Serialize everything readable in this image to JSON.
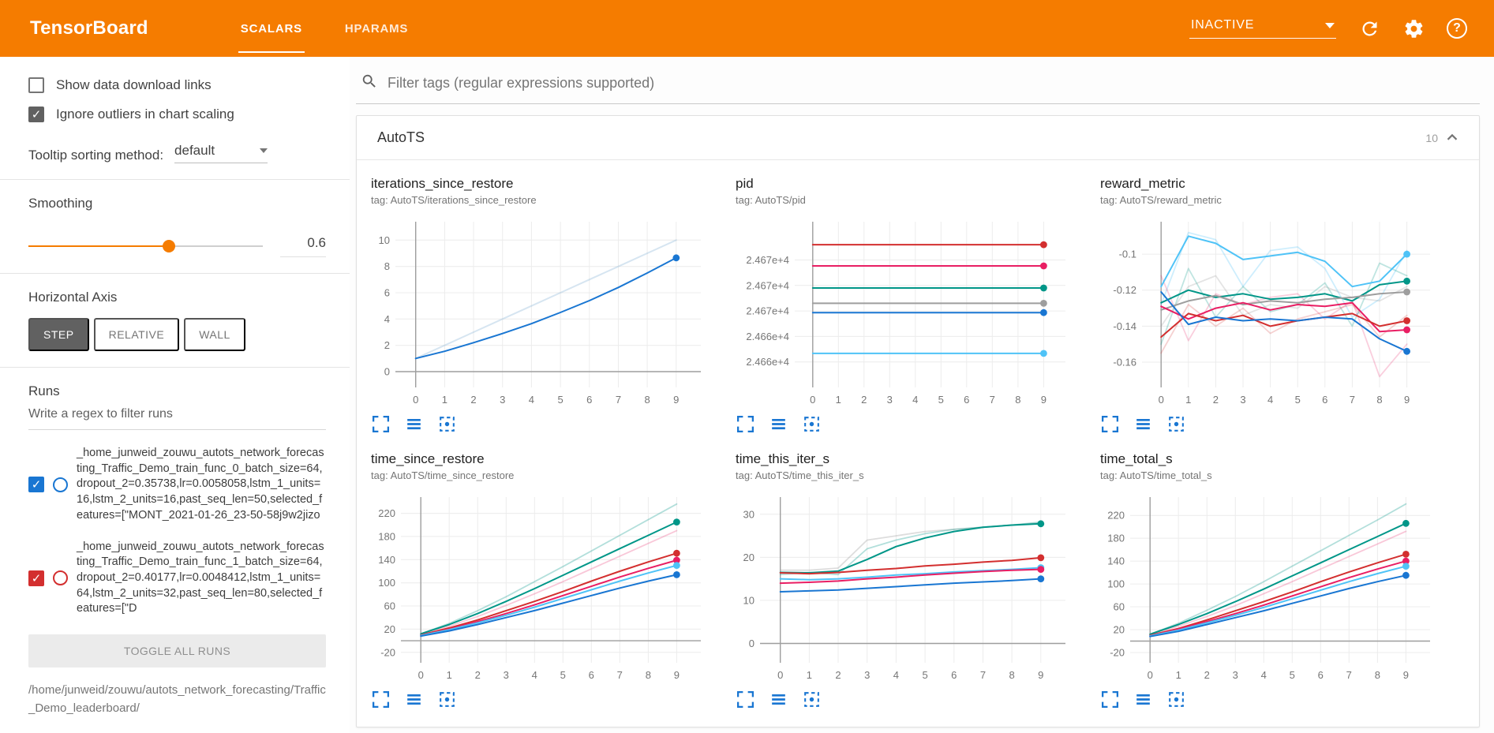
{
  "header": {
    "title": "TensorBoard",
    "tabs": [
      {
        "label": "SCALARS",
        "active": true
      },
      {
        "label": "HPARAMS",
        "active": false
      }
    ],
    "status_dropdown": "INACTIVE"
  },
  "icons": {
    "search": "magnifier",
    "refresh": "circular-arrow",
    "settings": "gear",
    "help": "question-mark-circle",
    "dropdown_caret": "triangle-down",
    "card_collapse": "chevron-up",
    "chart_toolbar": [
      "fullscreen-corners",
      "three-bars",
      "dashed-box-fit"
    ]
  },
  "colors": {
    "header_orange": "#f57c00",
    "accent_blue": "#1976d2",
    "run_blue": "#1976d2",
    "run_red": "#d32f2f",
    "run_pink": "#e91e63",
    "run_green": "#009688",
    "run_gray": "#9e9e9e",
    "run_cyan": "#4fc3f7"
  },
  "sidebar": {
    "checkboxes": [
      {
        "label": "Show data download links",
        "checked": false
      },
      {
        "label": "Ignore outliers in chart scaling",
        "checked": true
      }
    ],
    "tooltip_sorting": {
      "label": "Tooltip sorting method:",
      "value": "default"
    },
    "smoothing": {
      "label": "Smoothing",
      "value": "0.6"
    },
    "horizontal_axis": {
      "label": "Horizontal Axis",
      "options": [
        "STEP",
        "RELATIVE",
        "WALL"
      ],
      "selected": "STEP"
    },
    "runs": {
      "label": "Runs",
      "filter_placeholder": "Write a regex to filter runs",
      "items": [
        {
          "color": "#1976d2",
          "checked": true,
          "text": "_home_junweid_zouwu_autots_network_forecasting_Traffic_Demo_train_func_0_batch_size=64,dropout_2=0.35738,lr=0.0058058,lstm_1_units=16,lstm_2_units=16,past_seq_len=50,selected_features=[\"MONT_2021-01-26_23-50-58j9w2jizo"
        },
        {
          "color": "#d32f2f",
          "checked": true,
          "text": "_home_junweid_zouwu_autots_network_forecasting_Traffic_Demo_train_func_1_batch_size=64,dropout_2=0.40177,lr=0.0048412,lstm_1_units=64,lstm_2_units=32,past_seq_len=80,selected_features=[\"D"
        }
      ],
      "toggle_all_label": "TOGGLE ALL RUNS",
      "base_path": "/home/junweid/zouwu/autots_network_forecasting/Traffic_Demo_leaderboard/"
    }
  },
  "main": {
    "filter_placeholder": "Filter tags (regular expressions supported)",
    "card": {
      "title": "AutoTS",
      "count": "10"
    }
  },
  "chart_data": [
    {
      "type": "line",
      "title": "iterations_since_restore",
      "tag": "tag: AutoTS/iterations_since_restore",
      "xticks": [
        0,
        1,
        2,
        3,
        4,
        5,
        6,
        7,
        8,
        9
      ],
      "xlim": [
        -0.7,
        9.85
      ],
      "ylim": [
        -1.2,
        11.4
      ],
      "ytick_values": [
        0,
        2,
        4,
        6,
        8,
        10
      ],
      "ytick_labels": [
        "0",
        "2",
        "4",
        "6",
        "8",
        "10"
      ],
      "series": [
        {
          "name": "run-raw",
          "color": "#8ab4d8",
          "opacity": 0.35,
          "width": 2,
          "values": [
            1,
            2,
            3,
            4,
            5,
            6,
            7,
            8,
            9,
            10
          ]
        },
        {
          "name": "run-blue",
          "color": "#1976d2",
          "values": [
            1,
            1.55,
            2.2,
            2.9,
            3.65,
            4.5,
            5.4,
            6.4,
            7.5,
            8.65
          ],
          "dot": true
        }
      ]
    },
    {
      "type": "line",
      "title": "pid",
      "tag": "tag: AutoTS/pid",
      "xticks": [
        0,
        1,
        2,
        3,
        4,
        5,
        6,
        7,
        8,
        9
      ],
      "xlim": [
        -0.7,
        9.85
      ],
      "ylim": [
        24657,
        24676.5
      ],
      "ytick_values": [
        24672,
        24669,
        24666,
        24663,
        24660
      ],
      "ytick_labels": [
        "2.467e+4",
        "2.467e+4",
        "2.467e+4",
        "2.466e+4",
        "2.466e+4"
      ],
      "series": [
        {
          "name": "run-red",
          "color": "#d32f2f",
          "values": [
            24673.8,
            24673.8,
            24673.8,
            24673.8,
            24673.8,
            24673.8,
            24673.8,
            24673.8,
            24673.8,
            24673.8
          ],
          "dot": true
        },
        {
          "name": "run-pink",
          "color": "#e91e63",
          "values": [
            24671.3,
            24671.3,
            24671.3,
            24671.3,
            24671.3,
            24671.3,
            24671.3,
            24671.3,
            24671.3,
            24671.3
          ],
          "dot": true
        },
        {
          "name": "run-green",
          "color": "#009688",
          "values": [
            24668.7,
            24668.7,
            24668.7,
            24668.7,
            24668.7,
            24668.7,
            24668.7,
            24668.7,
            24668.7,
            24668.7
          ],
          "dot": true
        },
        {
          "name": "run-gray",
          "color": "#9e9e9e",
          "values": [
            24666.9,
            24666.9,
            24666.9,
            24666.9,
            24666.9,
            24666.9,
            24666.9,
            24666.9,
            24666.9,
            24666.9
          ],
          "dot": true
        },
        {
          "name": "run-blue",
          "color": "#1976d2",
          "values": [
            24665.8,
            24665.8,
            24665.8,
            24665.8,
            24665.8,
            24665.8,
            24665.8,
            24665.8,
            24665.8,
            24665.8
          ],
          "dot": true
        },
        {
          "name": "run-cyan",
          "color": "#4fc3f7",
          "values": [
            24661,
            24661,
            24661,
            24661,
            24661,
            24661,
            24661,
            24661,
            24661,
            24661
          ],
          "dot": true
        }
      ]
    },
    {
      "type": "line",
      "title": "reward_metric",
      "tag": "tag: AutoTS/reward_metric",
      "xticks": [
        0,
        1,
        2,
        3,
        4,
        5,
        6,
        7,
        8,
        9
      ],
      "xlim": [
        -0.7,
        9.85
      ],
      "ylim": [
        -0.174,
        -0.082
      ],
      "ytick_values": [
        -0.1,
        -0.12,
        -0.14,
        -0.16
      ],
      "ytick_labels": [
        "-0.1",
        "-0.12",
        "-0.14",
        "-0.16"
      ],
      "series": [
        {
          "name": "run-cyan-raw",
          "color": "#4fc3f7",
          "opacity": 0.28,
          "width": 1.8,
          "values": [
            -0.128,
            -0.088,
            -0.092,
            -0.118,
            -0.098,
            -0.096,
            -0.108,
            -0.135,
            -0.125,
            -0.098
          ]
        },
        {
          "name": "run-green-raw",
          "color": "#009688",
          "opacity": 0.25,
          "width": 1.8,
          "values": [
            -0.15,
            -0.108,
            -0.135,
            -0.118,
            -0.132,
            -0.128,
            -0.116,
            -0.14,
            -0.105,
            -0.112
          ]
        },
        {
          "name": "run-pink-raw",
          "color": "#e91e63",
          "opacity": 0.22,
          "width": 1.8,
          "values": [
            -0.112,
            -0.148,
            -0.122,
            -0.128,
            -0.124,
            -0.122,
            -0.136,
            -0.126,
            -0.168,
            -0.15
          ]
        },
        {
          "name": "run-gray-raw",
          "color": "#9e9e9e",
          "opacity": 0.28,
          "width": 1.8,
          "values": [
            -0.14,
            -0.118,
            -0.112,
            -0.134,
            -0.128,
            -0.13,
            -0.118,
            -0.124,
            -0.126,
            -0.118
          ]
        },
        {
          "name": "run-red-raw",
          "color": "#d32f2f",
          "opacity": 0.22,
          "width": 1.8,
          "values": [
            -0.155,
            -0.128,
            -0.14,
            -0.13,
            -0.144,
            -0.136,
            -0.132,
            -0.128,
            -0.146,
            -0.134
          ]
        },
        {
          "name": "run-cyan",
          "color": "#4fc3f7",
          "values": [
            -0.118,
            -0.09,
            -0.094,
            -0.103,
            -0.101,
            -0.099,
            -0.104,
            -0.118,
            -0.115,
            -0.1
          ],
          "dot": true
        },
        {
          "name": "run-green",
          "color": "#009688",
          "values": [
            -0.127,
            -0.12,
            -0.124,
            -0.122,
            -0.125,
            -0.124,
            -0.122,
            -0.126,
            -0.117,
            -0.115
          ],
          "dot": true
        },
        {
          "name": "run-gray",
          "color": "#9e9e9e",
          "values": [
            -0.131,
            -0.126,
            -0.123,
            -0.128,
            -0.126,
            -0.127,
            -0.125,
            -0.124,
            -0.122,
            -0.121
          ],
          "dot": true
        },
        {
          "name": "run-pink",
          "color": "#e91e63",
          "values": [
            -0.129,
            -0.136,
            -0.13,
            -0.127,
            -0.131,
            -0.128,
            -0.129,
            -0.127,
            -0.143,
            -0.142
          ],
          "dot": true
        },
        {
          "name": "run-red",
          "color": "#d32f2f",
          "values": [
            -0.146,
            -0.133,
            -0.137,
            -0.134,
            -0.14,
            -0.137,
            -0.135,
            -0.133,
            -0.14,
            -0.137
          ],
          "dot": true
        },
        {
          "name": "run-blue",
          "color": "#1976d2",
          "values": [
            -0.121,
            -0.139,
            -0.135,
            -0.137,
            -0.136,
            -0.137,
            -0.135,
            -0.136,
            -0.147,
            -0.154
          ],
          "dot": true
        }
      ]
    },
    {
      "type": "line",
      "title": "time_since_restore",
      "tag": "tag: AutoTS/time_since_restore",
      "xticks": [
        0,
        1,
        2,
        3,
        4,
        5,
        6,
        7,
        8,
        9
      ],
      "xlim": [
        -0.7,
        9.85
      ],
      "ylim": [
        -38,
        248
      ],
      "ytick_values": [
        -20,
        20,
        60,
        100,
        140,
        180,
        220
      ],
      "ytick_labels": [
        "-20",
        "20",
        "60",
        "100",
        "140",
        "180",
        "220"
      ],
      "series": [
        {
          "name": "run-green-raw",
          "color": "#009688",
          "opacity": 0.3,
          "width": 1.8,
          "values": [
            12,
            30,
            52,
            76,
            102,
            128,
            155,
            182,
            209,
            236
          ]
        },
        {
          "name": "run-pink-raw",
          "color": "#e91e63",
          "opacity": 0.25,
          "width": 1.8,
          "values": [
            10,
            25,
            42,
            61,
            81,
            102,
            124,
            146,
            168,
            190
          ]
        },
        {
          "name": "run-green",
          "color": "#009688",
          "values": [
            12,
            28,
            47,
            68,
            90,
            113,
            136,
            159,
            182,
            205
          ],
          "dot": true
        },
        {
          "name": "run-red",
          "color": "#d32f2f",
          "values": [
            10,
            22,
            36,
            52,
            68,
            85,
            103,
            120,
            136,
            151
          ],
          "dot": true
        },
        {
          "name": "run-pink",
          "color": "#e91e63",
          "values": [
            9,
            20,
            33,
            47,
            62,
            78,
            94,
            110,
            125,
            139
          ],
          "dot": true
        },
        {
          "name": "run-cyan",
          "color": "#4fc3f7",
          "values": [
            9,
            19,
            31,
            44,
            58,
            73,
            88,
            103,
            117,
            130
          ],
          "dot": true
        },
        {
          "name": "run-blue",
          "color": "#1976d2",
          "values": [
            8,
            17,
            28,
            40,
            52,
            65,
            78,
            91,
            103,
            114
          ],
          "dot": true
        }
      ]
    },
    {
      "type": "line",
      "title": "time_this_iter_s",
      "tag": "tag: AutoTS/time_this_iter_s",
      "xticks": [
        0,
        1,
        2,
        3,
        4,
        5,
        6,
        7,
        8,
        9
      ],
      "xlim": [
        -0.7,
        9.85
      ],
      "ylim": [
        -4.5,
        34
      ],
      "ytick_values": [
        0,
        10,
        20,
        30
      ],
      "ytick_labels": [
        "0",
        "10",
        "20",
        "30"
      ],
      "series": [
        {
          "name": "run-gray-raw",
          "color": "#9e9e9e",
          "opacity": 0.35,
          "width": 1.8,
          "values": [
            17,
            17,
            17.5,
            24,
            25,
            26,
            26.5,
            27,
            27.5,
            28
          ]
        },
        {
          "name": "run-green-raw",
          "color": "#009688",
          "opacity": 0.3,
          "width": 1.8,
          "values": [
            16,
            16.5,
            16,
            22,
            24,
            25.5,
            26.5,
            27,
            27.5,
            28.2
          ]
        },
        {
          "name": "run-green",
          "color": "#009688",
          "values": [
            16.5,
            16.4,
            16.8,
            19.5,
            22.5,
            24.5,
            26,
            27,
            27.5,
            27.8
          ],
          "dot": true
        },
        {
          "name": "run-red",
          "color": "#d32f2f",
          "values": [
            16.4,
            16.2,
            16.5,
            17,
            17.4,
            18,
            18.4,
            18.9,
            19.3,
            19.9
          ],
          "dot": true
        },
        {
          "name": "run-cyan",
          "color": "#4fc3f7",
          "values": [
            15,
            14.8,
            15,
            15.4,
            15.9,
            16.2,
            16.6,
            16.9,
            17.2,
            17.6
          ],
          "dot": true
        },
        {
          "name": "run-pink",
          "color": "#e91e63",
          "values": [
            14,
            14.2,
            14.5,
            15,
            15.4,
            15.9,
            16.3,
            16.7,
            17,
            17.2
          ],
          "dot": true
        },
        {
          "name": "run-blue",
          "color": "#1976d2",
          "values": [
            12,
            12.2,
            12.4,
            12.8,
            13.2,
            13.6,
            14,
            14.3,
            14.6,
            15
          ],
          "dot": true
        }
      ]
    },
    {
      "type": "line",
      "title": "time_total_s",
      "tag": "tag: AutoTS/time_total_s",
      "xticks": [
        0,
        1,
        2,
        3,
        4,
        5,
        6,
        7,
        8,
        9
      ],
      "xlim": [
        -0.7,
        9.85
      ],
      "ylim": [
        -38,
        252
      ],
      "ytick_values": [
        -20,
        20,
        60,
        100,
        140,
        180,
        220
      ],
      "ytick_labels": [
        "-20",
        "20",
        "60",
        "100",
        "140",
        "180",
        "220"
      ],
      "series": [
        {
          "name": "run-green-raw",
          "color": "#009688",
          "opacity": 0.3,
          "width": 1.8,
          "values": [
            12,
            31,
            54,
            78,
            104,
            131,
            158,
            185,
            212,
            240
          ]
        },
        {
          "name": "run-pink-raw",
          "color": "#e91e63",
          "opacity": 0.25,
          "width": 1.8,
          "values": [
            10,
            26,
            43,
            62,
            83,
            104,
            126,
            148,
            170,
            192
          ]
        },
        {
          "name": "run-green",
          "color": "#009688",
          "values": [
            12,
            29,
            48,
            69,
            91,
            114,
            137,
            160,
            183,
            206
          ],
          "dot": true
        },
        {
          "name": "run-red",
          "color": "#d32f2f",
          "values": [
            10,
            22,
            37,
            53,
            69,
            86,
            104,
            121,
            137,
            152
          ],
          "dot": true
        },
        {
          "name": "run-pink",
          "color": "#e91e63",
          "values": [
            9,
            21,
            34,
            48,
            63,
            79,
            95,
            111,
            126,
            140
          ],
          "dot": true
        },
        {
          "name": "run-cyan",
          "color": "#4fc3f7",
          "values": [
            9,
            19,
            32,
            45,
            59,
            74,
            89,
            104,
            118,
            131
          ],
          "dot": true
        },
        {
          "name": "run-blue",
          "color": "#1976d2",
          "values": [
            8,
            17,
            29,
            41,
            53,
            66,
            79,
            92,
            104,
            115
          ],
          "dot": true
        }
      ]
    }
  ]
}
